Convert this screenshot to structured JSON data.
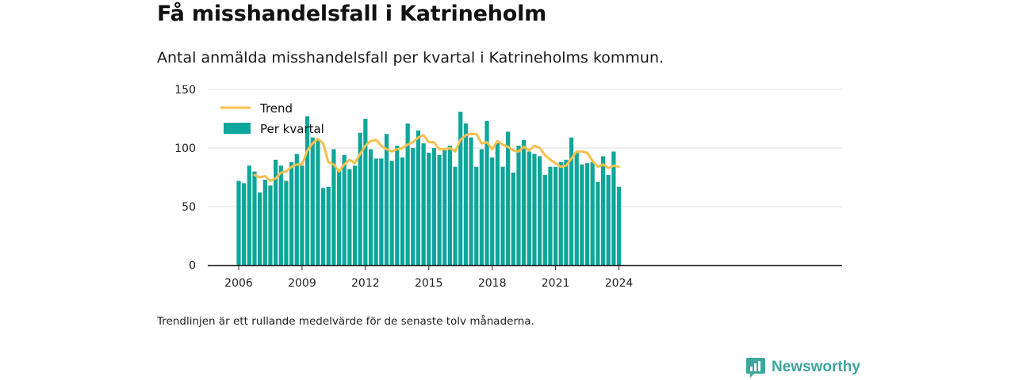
{
  "title": "Få misshandelsfall i Katrineholm",
  "subtitle": "Antal anmälda misshandelsfall per kvartal i Katrineholms kommun.",
  "footnote": "Trendlinjen är ett rullande medelvärde för de senaste tolv månaderna.",
  "brand": {
    "name": "Newsworthy",
    "icon": "newsworthy-logo-icon"
  },
  "colors": {
    "bars": "#0ca69a",
    "trend": "#f7c04f",
    "grid": "#dddddd",
    "axis": "#222222"
  },
  "chart_data": {
    "type": "bar",
    "title": "Få misshandelsfall i Katrineholm",
    "subtitle": "Antal anmälda misshandelsfall per kvartal i Katrineholms kommun.",
    "xlabel": "",
    "ylabel": "",
    "ylim": [
      0,
      150
    ],
    "yticks": [
      0,
      50,
      100,
      150
    ],
    "xtick_labels": [
      "2006",
      "2009",
      "2012",
      "2015",
      "2018",
      "2021",
      "2024"
    ],
    "x_start": "2006 Q1",
    "x_end": "2024 Q1",
    "grid": true,
    "legend_position": "top-left",
    "series": [
      {
        "name": "Per kvartal",
        "type": "bar",
        "values": [
          72,
          70,
          85,
          80,
          62,
          73,
          68,
          90,
          85,
          72,
          88,
          95,
          85,
          127,
          109,
          107,
          66,
          67,
          99,
          82,
          94,
          82,
          85,
          113,
          125,
          99,
          91,
          91,
          112,
          89,
          102,
          92,
          121,
          100,
          115,
          104,
          96,
          100,
          94,
          98,
          102,
          84,
          131,
          121,
          109,
          84,
          99,
          123,
          92,
          104,
          84,
          114,
          79,
          102,
          107,
          97,
          95,
          93,
          77,
          84,
          84,
          88,
          90,
          109,
          96,
          86,
          87,
          88,
          71,
          93,
          77,
          97,
          67
        ]
      },
      {
        "name": "Trend",
        "type": "line",
        "values": [
          null,
          null,
          null,
          77,
          75,
          76,
          72,
          74,
          79,
          80,
          84,
          86,
          86,
          98,
          104,
          108,
          104,
          88,
          86,
          80,
          86,
          90,
          87,
          95,
          102,
          106,
          107,
          102,
          99,
          97,
          99,
          100,
          103,
          105,
          109,
          111,
          105,
          105,
          99,
          99,
          100,
          97,
          107,
          111,
          112,
          112,
          104,
          105,
          99,
          106,
          103,
          101,
          98,
          97,
          101,
          98,
          102,
          100,
          94,
          90,
          87,
          84,
          85,
          91,
          97,
          97,
          96,
          89,
          84,
          86,
          83,
          85,
          84
        ]
      }
    ]
  }
}
